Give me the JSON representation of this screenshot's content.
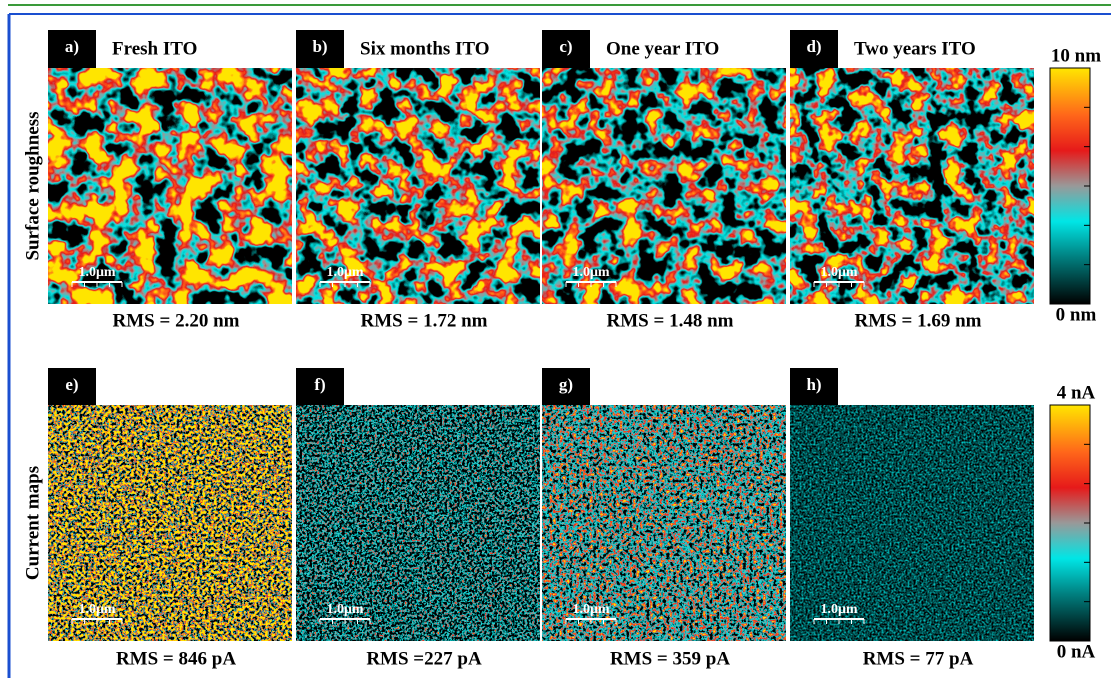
{
  "figure": {
    "row_labels": [
      "Surface roughness",
      "Current maps"
    ],
    "panels": [
      {
        "label": "a)",
        "title": "Fresh ITO",
        "scale_bar": "1.0μm",
        "rms": "RMS = 2.20 nm"
      },
      {
        "label": "b)",
        "title": "Six months ITO",
        "scale_bar": "1.0μm",
        "rms": "RMS = 1.72 nm"
      },
      {
        "label": "c)",
        "title": "One year ITO",
        "scale_bar": "1.0μm",
        "rms": "RMS = 1.48 nm"
      },
      {
        "label": "d)",
        "title": "Two years ITO",
        "scale_bar": "1.0μm",
        "rms": "RMS = 1.69 nm"
      },
      {
        "label": "e)",
        "scale_bar": "1.0μm",
        "rms": "RMS = 846 pA"
      },
      {
        "label": "f)",
        "scale_bar": "1.0μm",
        "rms": "RMS =227 pA"
      },
      {
        "label": "g)",
        "scale_bar": "1.0μm",
        "rms": "RMS = 359 pA"
      },
      {
        "label": "h)",
        "scale_bar": "1.0μm",
        "rms": "RMS = 77 pA"
      }
    ],
    "colorbars": [
      {
        "max_label": "10 nm",
        "min_label": "0 nm"
      },
      {
        "max_label": "4 nA",
        "min_label": "0 nA"
      }
    ]
  }
}
